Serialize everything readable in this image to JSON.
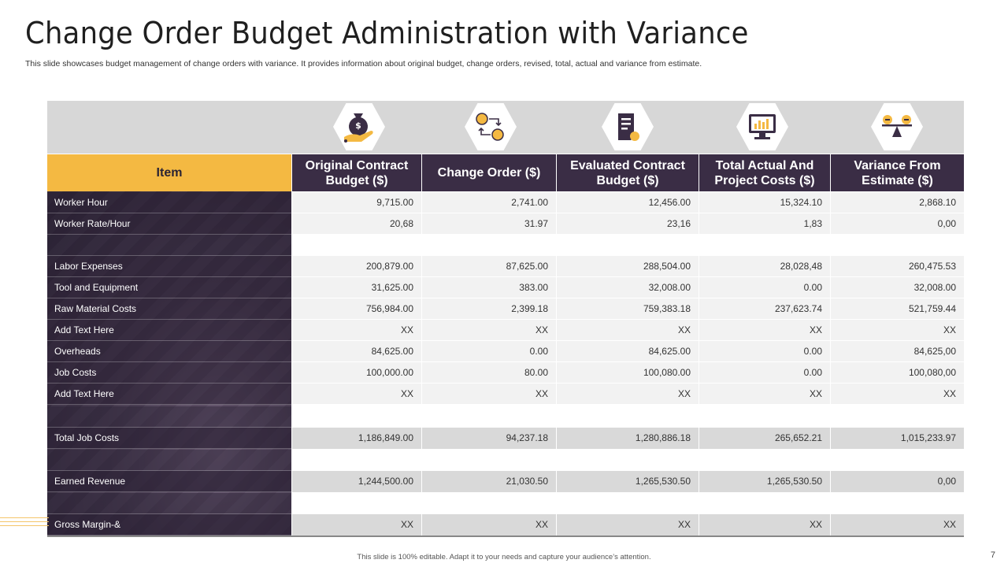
{
  "slide": {
    "title": "Change Order Budget Administration with Variance",
    "subtitle": "This slide showcases budget management of change orders with variance. It provides information about original budget, change orders, revised, total, actual and variance from estimate.",
    "footer": "This slide is 100% editable. Adapt it to your needs and capture your audience’s attention.",
    "page_number": "7"
  },
  "colors": {
    "accent": "#f4b942",
    "dark": "#3a2d45",
    "band": "#d7d7d7"
  },
  "icons": [
    "money-bag-hand-icon",
    "exchange-coins-icon",
    "document-budget-icon",
    "monitor-chart-icon",
    "balance-scale-icon"
  ],
  "table": {
    "headers": {
      "item": "Item",
      "c1a": "Original Contract",
      "c1b": "Budget ($)",
      "c2": "Change Order ($)",
      "c3a": "Evaluated Contract",
      "c3b": "Budget ($)",
      "c4a": "Total Actual And",
      "c4b": "Project Costs ($)",
      "c5a": "Variance From",
      "c5b": "Estimate ($)"
    },
    "rows": [
      {
        "label": "Worker Hour",
        "v": [
          "9,715.00",
          "2,741.00",
          "12,456.00",
          "15,324.10",
          "2,868.10"
        ]
      },
      {
        "label": "Worker Rate/Hour",
        "v": [
          "20,68",
          "31.97",
          "23,16",
          "1,83",
          "0,00"
        ]
      },
      {
        "label": "Labor Expenses",
        "v": [
          "200,879.00",
          "87,625.00",
          "288,504.00",
          "28,028,48",
          "260,475.53"
        ]
      },
      {
        "label": "Tool and Equipment",
        "v": [
          "31,625.00",
          "383.00",
          "32,008.00",
          "0.00",
          "32,008.00"
        ]
      },
      {
        "label": "Raw Material Costs",
        "v": [
          "756,984.00",
          "2,399.18",
          "759,383.18",
          "237,623.74",
          "521,759.44"
        ]
      },
      {
        "label": "Add Text Here",
        "v": [
          "XX",
          "XX",
          "XX",
          "XX",
          "XX"
        ]
      },
      {
        "label": "Overheads",
        "v": [
          "84,625.00",
          "0.00",
          "84,625.00",
          "0.00",
          "84,625,00"
        ]
      },
      {
        "label": "Job Costs",
        "v": [
          "100,000.00",
          "80.00",
          "100,080.00",
          "0.00",
          "100,080,00"
        ]
      },
      {
        "label": "Add Text Here",
        "v": [
          "XX",
          "XX",
          "XX",
          "XX",
          "XX"
        ]
      },
      {
        "label": "Total Job Costs",
        "v": [
          "1,186,849.00",
          "94,237.18",
          "1,280,886.18",
          "265,652.21",
          "1,015,233.97"
        ]
      },
      {
        "label": "Earned Revenue",
        "v": [
          "1,244,500.00",
          "21,030.50",
          "1,265,530.50",
          "1,265,530.50",
          "0,00"
        ]
      },
      {
        "label": "Gross Margin-&",
        "v": [
          "XX",
          "XX",
          "XX",
          "XX",
          "XX"
        ]
      }
    ]
  }
}
